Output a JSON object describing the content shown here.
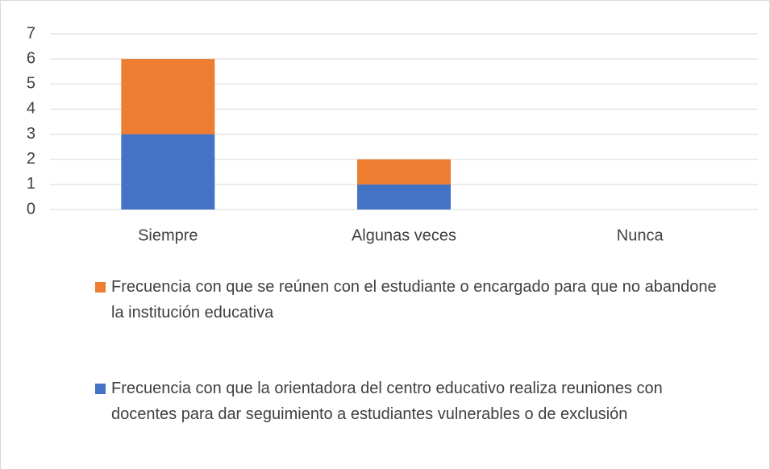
{
  "chart_data": {
    "type": "bar",
    "stacked": true,
    "categories": [
      "Siempre",
      "Algunas veces",
      "Nunca"
    ],
    "series": [
      {
        "name": "Frecuencia con que la orientadora del centro educativo realiza reuniones con docentes para dar seguimiento a estudiantes vulnerables o de exclusión",
        "color": "#4472c4",
        "values": [
          3,
          1,
          0
        ]
      },
      {
        "name": "Frecuencia con que se reúnen con el estudiante o encargado para que no abandone la institución educativa",
        "color": "#ed7d31",
        "values": [
          3,
          1,
          0
        ]
      }
    ],
    "ylim": [
      0,
      7
    ],
    "yticks": [
      0,
      1,
      2,
      3,
      4,
      5,
      6,
      7
    ],
    "grid": true,
    "legend": "bottom"
  }
}
